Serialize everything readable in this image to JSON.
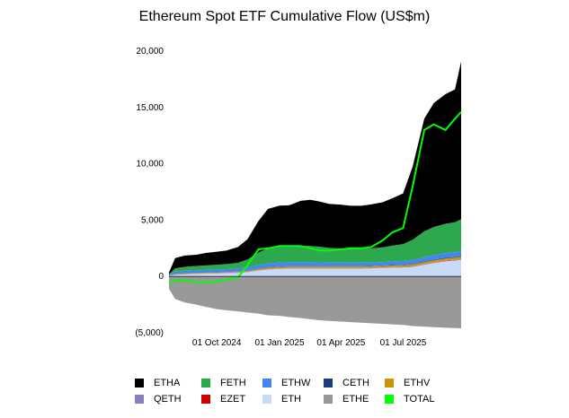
{
  "chart_data": {
    "type": "area",
    "title": "Ethereum Spot ETF Cumulative Flow (US$m)",
    "xlabel": "",
    "ylabel": "",
    "ylim": [
      -5000,
      20000
    ],
    "yticks": [
      {
        "value": 20000,
        "label": "20,000"
      },
      {
        "value": 15000,
        "label": "15,000"
      },
      {
        "value": 10000,
        "label": "10,000"
      },
      {
        "value": 5000,
        "label": "5,000"
      },
      {
        "value": 0,
        "label": "0"
      },
      {
        "value": -5000,
        "label": "(5,000)"
      }
    ],
    "xrange": [
      "2024-07-23",
      "2025-09-24"
    ],
    "xticks": [
      {
        "date": "2024-10-01",
        "label": "01 Oct 2024"
      },
      {
        "date": "2025-01-01",
        "label": "01 Jan 2025"
      },
      {
        "date": "2025-04-01",
        "label": "01 Apr 2025"
      },
      {
        "date": "2025-07-01",
        "label": "01 Jul 2025"
      }
    ],
    "x": [
      "2024-07-23",
      "2024-08-01",
      "2024-08-15",
      "2024-09-01",
      "2024-09-15",
      "2024-10-01",
      "2024-10-15",
      "2024-11-01",
      "2024-11-15",
      "2024-12-01",
      "2024-12-15",
      "2025-01-01",
      "2025-01-15",
      "2025-02-01",
      "2025-02-15",
      "2025-03-01",
      "2025-03-15",
      "2025-04-01",
      "2025-04-15",
      "2025-05-01",
      "2025-05-15",
      "2025-06-01",
      "2025-06-15",
      "2025-07-01",
      "2025-07-15",
      "2025-08-01",
      "2025-08-15",
      "2025-09-01",
      "2025-09-15",
      "2025-09-24"
    ],
    "stack_order": [
      "ETH",
      "ETHE",
      "EZET",
      "QETH",
      "ETHV",
      "CETH",
      "ETHW",
      "FETH",
      "ETHA"
    ],
    "series": [
      {
        "name": "ETHA",
        "color": "#000000",
        "values": [
          150,
          900,
          1000,
          1000,
          1100,
          1150,
          1200,
          1400,
          1800,
          2800,
          3500,
          3600,
          3600,
          4000,
          4100,
          4000,
          3900,
          3900,
          3800,
          3800,
          3900,
          4000,
          4200,
          4500,
          6500,
          10000,
          11000,
          11500,
          11800,
          14000
        ]
      },
      {
        "name": "FETH",
        "color": "#2ea84f",
        "values": [
          50,
          300,
          350,
          380,
          400,
          420,
          440,
          500,
          700,
          1100,
          1350,
          1450,
          1450,
          1450,
          1450,
          1400,
          1300,
          1250,
          1250,
          1250,
          1250,
          1300,
          1400,
          1500,
          1800,
          2300,
          2500,
          2600,
          2650,
          2800
        ]
      },
      {
        "name": "ETHW",
        "color": "#4285f4",
        "values": [
          70,
          200,
          220,
          230,
          240,
          250,
          260,
          270,
          290,
          320,
          340,
          350,
          350,
          345,
          340,
          330,
          320,
          310,
          310,
          310,
          310,
          310,
          320,
          330,
          350,
          380,
          400,
          420,
          430,
          450
        ]
      },
      {
        "name": "CETH",
        "color": "#1c3d7a",
        "values": [
          5,
          10,
          10,
          12,
          12,
          15,
          15,
          18,
          20,
          25,
          28,
          30,
          30,
          30,
          30,
          30,
          30,
          28,
          28,
          28,
          28,
          30,
          32,
          35,
          40,
          45,
          50,
          55,
          55,
          60
        ]
      },
      {
        "name": "ETHV",
        "color": "#c9960a",
        "values": [
          20,
          40,
          50,
          50,
          55,
          60,
          65,
          70,
          80,
          100,
          120,
          130,
          135,
          140,
          140,
          140,
          140,
          140,
          140,
          140,
          140,
          145,
          150,
          155,
          165,
          175,
          180,
          185,
          190,
          200
        ]
      },
      {
        "name": "QETH",
        "color": "#8e7cc3",
        "values": [
          5,
          15,
          15,
          15,
          15,
          15,
          15,
          18,
          20,
          25,
          28,
          30,
          30,
          30,
          30,
          30,
          30,
          30,
          30,
          30,
          30,
          30,
          30,
          30,
          32,
          35,
          38,
          40,
          40,
          42
        ]
      },
      {
        "name": "EZET",
        "color": "#cc0000",
        "values": [
          5,
          10,
          10,
          10,
          12,
          12,
          12,
          14,
          14,
          15,
          15,
          16,
          16,
          16,
          16,
          16,
          16,
          16,
          16,
          16,
          16,
          16,
          16,
          18,
          20,
          22,
          24,
          25,
          25,
          26
        ]
      },
      {
        "name": "ETH",
        "color": "#c9daf8",
        "values": [
          50,
          150,
          200,
          230,
          250,
          270,
          290,
          320,
          380,
          530,
          620,
          680,
          700,
          700,
          700,
          700,
          700,
          700,
          700,
          700,
          720,
          750,
          780,
          800,
          850,
          1050,
          1200,
          1350,
          1420,
          1500
        ]
      },
      {
        "name": "ETHE",
        "color": "#999999",
        "values": [
          -1100,
          -2000,
          -2300,
          -2500,
          -2700,
          -2900,
          -3000,
          -3100,
          -3200,
          -3300,
          -3450,
          -3500,
          -3600,
          -3700,
          -3800,
          -3900,
          -3950,
          -4000,
          -4050,
          -4100,
          -4150,
          -4200,
          -4250,
          -4300,
          -4400,
          -4450,
          -4500,
          -4550,
          -4580,
          -4600
        ]
      },
      {
        "name": "TOTAL",
        "color": "#00ff00",
        "type": "line",
        "values": [
          -600,
          -350,
          -330,
          -500,
          -520,
          -450,
          -300,
          -100,
          1000,
          2400,
          2500,
          2700,
          2700,
          2700,
          2500,
          2300,
          2300,
          2400,
          2500,
          2500,
          2600,
          3200,
          3900,
          4300,
          8000,
          13000,
          13500,
          13000,
          14000,
          14600
        ]
      }
    ],
    "legend": {
      "position": "bottom",
      "rows": [
        [
          {
            "name": "ETHA",
            "color": "#000000"
          },
          {
            "name": "FETH",
            "color": "#2ea84f"
          },
          {
            "name": "ETHW",
            "color": "#4285f4"
          },
          {
            "name": "CETH",
            "color": "#1c3d7a"
          },
          {
            "name": "ETHV",
            "color": "#c9960a"
          }
        ],
        [
          {
            "name": "QETH",
            "color": "#8e7cc3"
          },
          {
            "name": "EZET",
            "color": "#cc0000"
          },
          {
            "name": "ETH",
            "color": "#c9daf8"
          },
          {
            "name": "ETHE",
            "color": "#999999"
          },
          {
            "name": "TOTAL",
            "color": "#00ff00"
          }
        ]
      ]
    },
    "grid": false
  }
}
